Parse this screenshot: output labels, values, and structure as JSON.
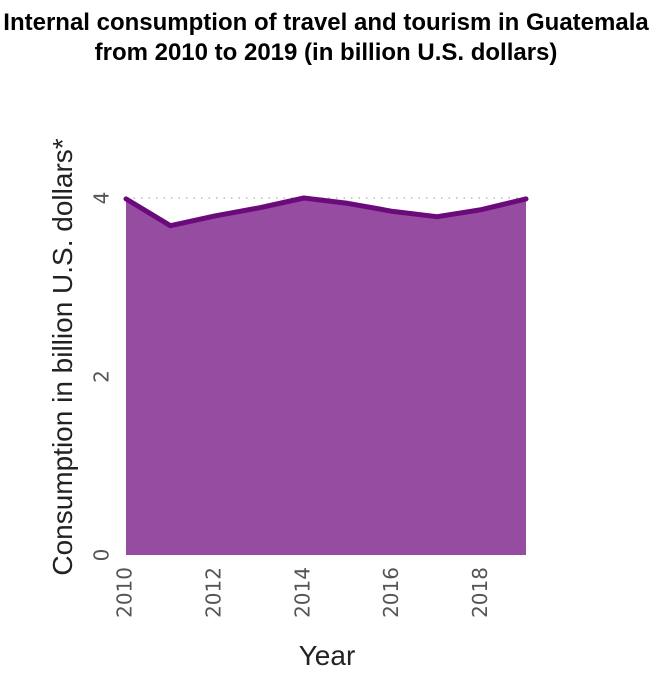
{
  "chart_data": {
    "type": "area",
    "title": "Internal consumption of travel and tourism in Guatemala from 2010 to 2019 (in billion U.S. dollars)",
    "xlabel": "Year",
    "ylabel": "Consumption in billion U.S. dollars*",
    "x": [
      2010,
      2011,
      2012,
      2013,
      2014,
      2015,
      2016,
      2017,
      2018,
      2019
    ],
    "values": [
      3.99,
      3.69,
      3.8,
      3.89,
      4.0,
      3.94,
      3.85,
      3.79,
      3.87,
      3.99
    ],
    "xlim": [
      2010,
      2019
    ],
    "ylim": [
      0,
      4.0
    ],
    "xticks": [
      2010,
      2012,
      2014,
      2016,
      2018
    ],
    "yticks": [
      0,
      2,
      4
    ],
    "grid": "horizontal dotted",
    "colors": {
      "fill": "#954ca1",
      "line": "#6b0a7a",
      "grid": "#bbbbbb"
    }
  }
}
